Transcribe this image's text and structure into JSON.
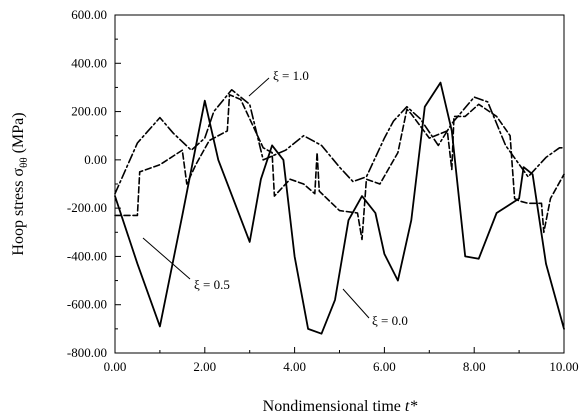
{
  "chart_data": {
    "type": "line",
    "xlabel": "Nondimensional time t*",
    "ylabel": "Hoop stress σθθ (MPa)",
    "xlim": [
      0,
      10
    ],
    "ylim": [
      -800,
      600
    ],
    "xticks": [
      "0.00",
      "2.00",
      "4.00",
      "6.00",
      "8.00",
      "10.00"
    ],
    "yticks": [
      "600.00",
      "400.00",
      "200.00",
      "0.00",
      "-200.00",
      "-400.00",
      "-600.00",
      "-800.00"
    ],
    "grid": false,
    "legend": "none (series labelled by annotations)",
    "series": [
      {
        "name": "ξ = 0.0",
        "style": "solid",
        "color": "#000000",
        "x": [
          0,
          0.5,
          1.0,
          1.5,
          2.0,
          2.3,
          3.0,
          3.25,
          3.5,
          3.75,
          4.0,
          4.3,
          4.6,
          4.9,
          5.2,
          5.5,
          5.8,
          6.0,
          6.3,
          6.6,
          6.9,
          7.25,
          7.5,
          7.8,
          8.1,
          8.5,
          9.0,
          9.1,
          9.3,
          9.6,
          10.0
        ],
        "y": [
          -150,
          -430,
          -690,
          -230,
          245,
          0,
          -340,
          -80,
          60,
          0,
          -400,
          -700,
          -720,
          -580,
          -250,
          -150,
          -220,
          -390,
          -500,
          -250,
          220,
          320,
          120,
          -400,
          -410,
          -220,
          -160,
          -30,
          -60,
          -430,
          -700
        ]
      },
      {
        "name": "ξ = 0.5",
        "style": "dashed",
        "color": "#000000",
        "x": [
          0,
          0.3,
          0.5,
          0.55,
          1.0,
          1.5,
          1.6,
          1.8,
          2.1,
          2.5,
          2.55,
          2.8,
          3.3,
          3.5,
          3.55,
          3.9,
          4.2,
          4.45,
          4.5,
          4.55,
          5.0,
          5.4,
          5.5,
          5.6,
          5.9,
          6.3,
          6.5,
          6.6,
          7.0,
          7.4,
          7.5,
          7.55,
          7.8,
          8.1,
          8.5,
          8.8,
          8.9,
          9.0,
          9.2,
          9.5,
          9.55,
          9.7,
          10.0
        ],
        "y": [
          -230,
          -230,
          -230,
          -50,
          -20,
          40,
          -100,
          -20,
          80,
          120,
          270,
          250,
          50,
          30,
          -150,
          -80,
          -100,
          -140,
          30,
          -130,
          -210,
          -220,
          -330,
          -80,
          -100,
          30,
          210,
          190,
          90,
          120,
          -40,
          180,
          180,
          230,
          180,
          100,
          -160,
          -170,
          -180,
          -180,
          -300,
          -160,
          -60
        ]
      },
      {
        "name": "ξ = 1.0",
        "style": "dash-dot",
        "color": "#000000",
        "x": [
          0,
          0.5,
          1.0,
          1.3,
          1.7,
          2.0,
          2.2,
          2.6,
          3.0,
          3.3,
          3.8,
          4.2,
          4.6,
          5.0,
          5.3,
          5.6,
          6.0,
          6.2,
          6.5,
          6.8,
          7.2,
          7.5,
          8.0,
          8.3,
          8.7,
          9.2,
          9.6,
          9.9,
          10.0
        ],
        "y": [
          -140,
          70,
          175,
          110,
          40,
          90,
          200,
          290,
          230,
          0,
          40,
          100,
          60,
          -30,
          -90,
          -70,
          90,
          160,
          220,
          170,
          60,
          150,
          260,
          240,
          60,
          -70,
          10,
          50,
          50
        ]
      }
    ],
    "annotations": [
      "ξ = 1.0",
      "ξ = 0.5",
      "ξ = 0.0"
    ]
  }
}
